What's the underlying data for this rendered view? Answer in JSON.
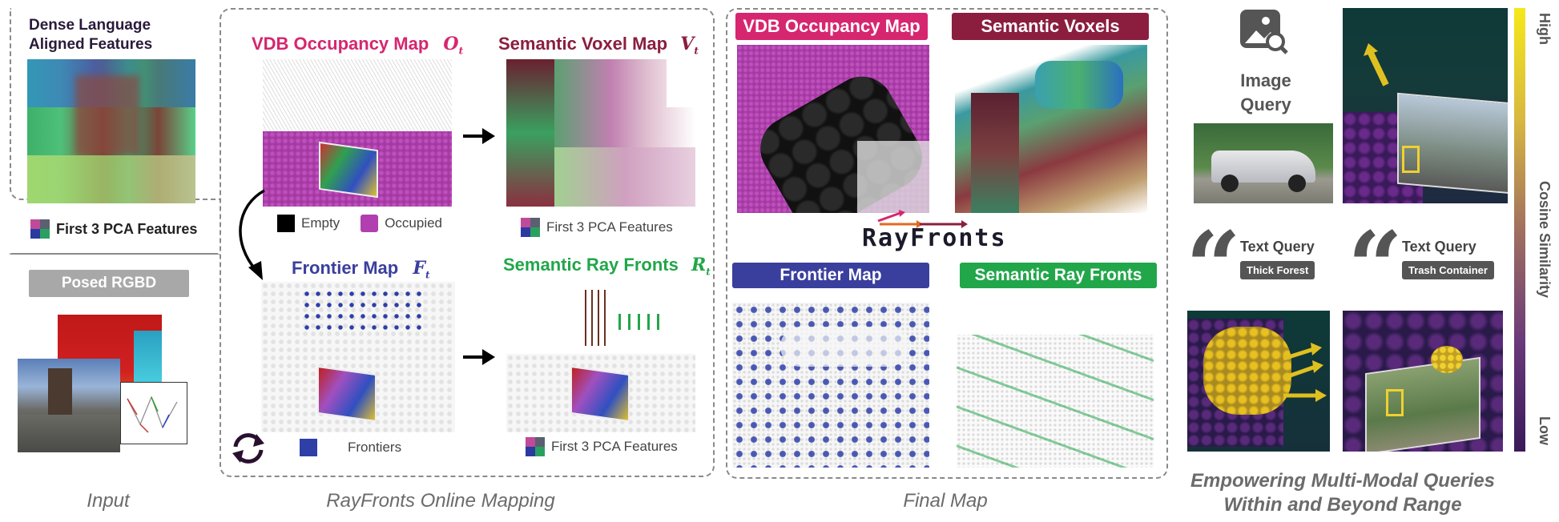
{
  "input": {
    "dense_title_line1": "Dense Language",
    "dense_title_line2": "Aligned Features",
    "pca_label": "First 3 PCA Features",
    "posed_rgbd": "Posed RGBD",
    "caption": "Input"
  },
  "online": {
    "vdb_title": "VDB Occupancy Map",
    "vdb_sym": "O",
    "vdb_sub": "t",
    "legend_empty": "Empty",
    "legend_occupied": "Occupied",
    "semantic_voxel_title": "Semantic Voxel Map",
    "semantic_voxel_sym": "V",
    "semantic_voxel_sub": "t",
    "voxel_pca_label": "First 3 PCA Features",
    "frontier_title": "Frontier Map",
    "frontier_sym": "F",
    "frontier_sub": "t",
    "frontiers_label": "Frontiers",
    "rayfront_title": "Semantic Ray Fronts",
    "rayfront_sym": "R",
    "rayfront_sub": "t",
    "ray_pca_label": "First 3 PCA Features",
    "caption": "RayFronts Online Mapping"
  },
  "final": {
    "vdb_label": "VDB Occupancy Map",
    "voxels_label": "Semantic Voxels",
    "logo": "RayFronts",
    "frontier_label": "Frontier Map",
    "rayfronts_label": "Semantic Ray Fronts",
    "caption": "Final Map"
  },
  "queries": {
    "image_query_line1": "Image",
    "image_query_line2": "Query",
    "text_query_1": "Text Query",
    "text_tag_1": "Thick Forest",
    "text_query_2": "Text Query",
    "text_tag_2": "Trash Container",
    "colorbar_high": "High",
    "colorbar_mid": "Cosine Similarity",
    "colorbar_low": "Low",
    "caption_line1": "Empowering  Multi-Modal Queries",
    "caption_line2": "Within and Beyond Range"
  },
  "colors": {
    "vdb_magenta": "#d6266f",
    "semantic_maroon": "#8b1e3f",
    "frontier_blue": "#3a3f9e",
    "rayfront_green": "#22a64a",
    "occupied": "#b13fb0",
    "frontier_dot": "#2e3fa8"
  }
}
